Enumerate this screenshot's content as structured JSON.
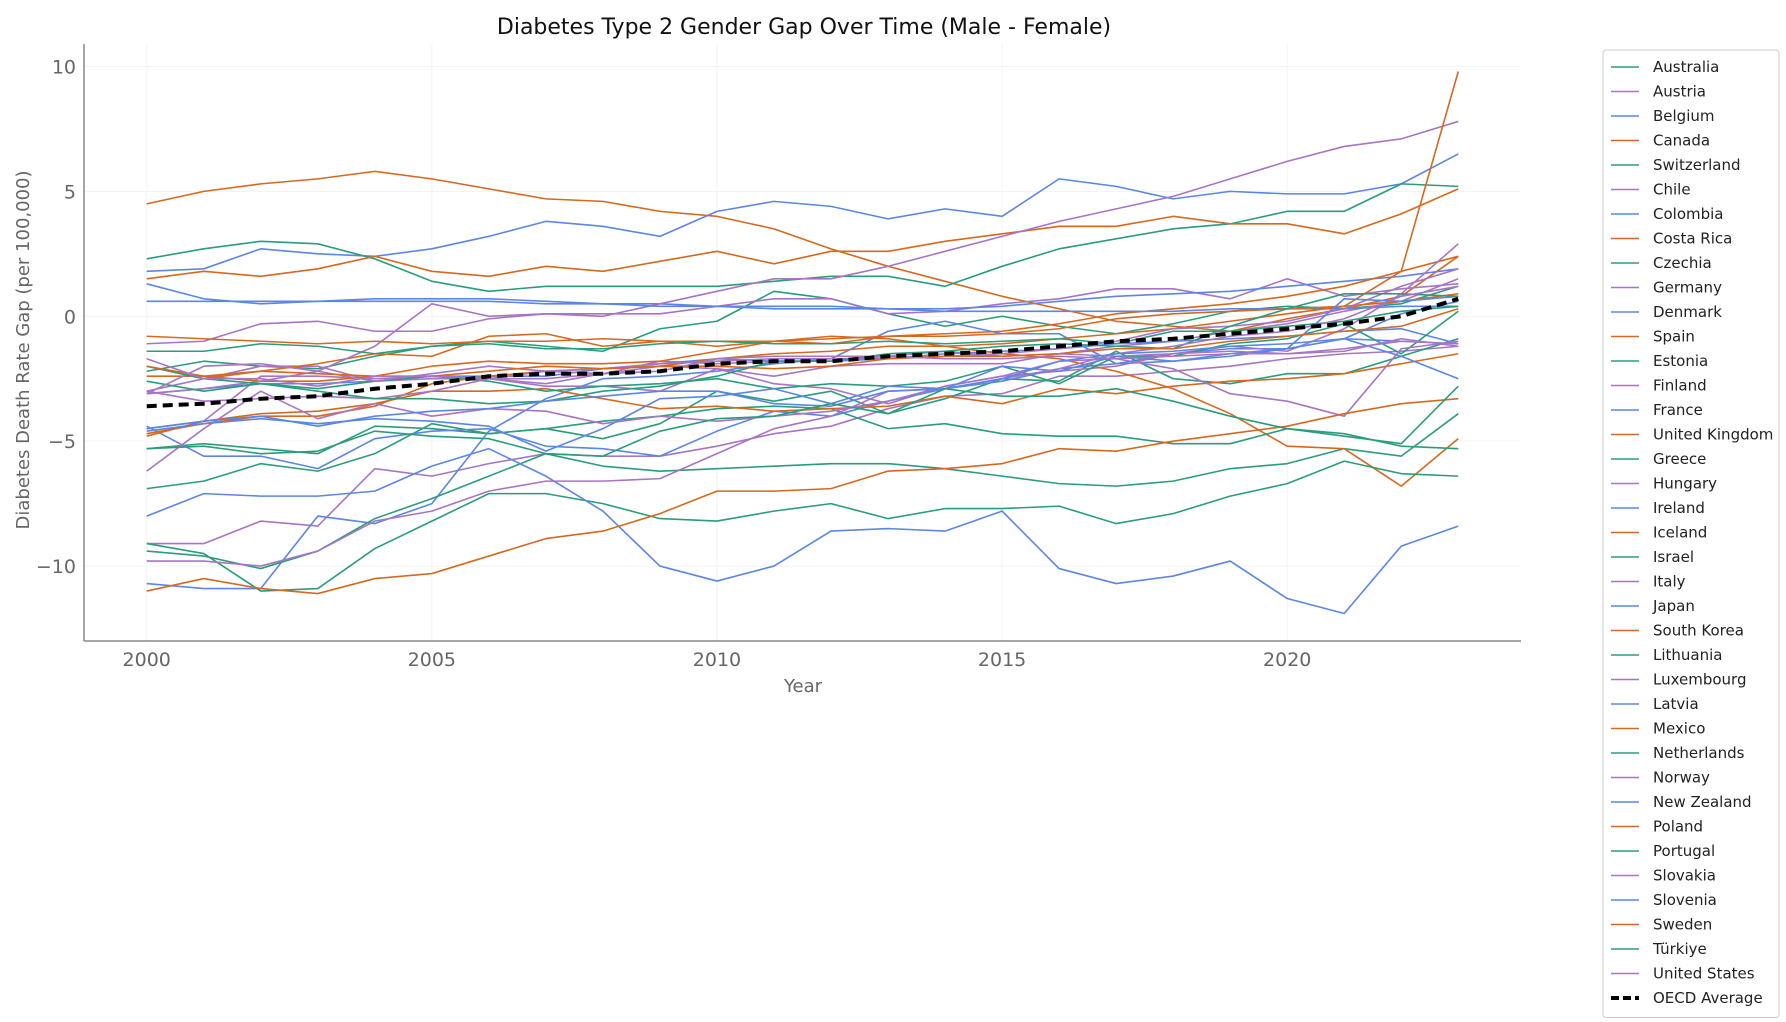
{
  "chart_data": {
    "type": "line",
    "title": "Diabetes Type 2 Gender Gap Over Time (Male - Female)",
    "xlabel": "Year",
    "ylabel": "Diabetes Death Rate Gap (per 100,000)",
    "xlim": [
      1998.9,
      2024.1
    ],
    "ylim": [
      -13,
      10.9
    ],
    "xticks": [
      2000,
      2005,
      2010,
      2015,
      2020
    ],
    "yticks": [
      -10,
      -5,
      0,
      5,
      10
    ],
    "ytick_labels": [
      "−10",
      "−5",
      "0",
      "5",
      "10"
    ],
    "grid": true,
    "legend_position": "right, outside",
    "x": [
      2000,
      2001,
      2002,
      2003,
      2004,
      2005,
      2006,
      2007,
      2008,
      2009,
      2010,
      2011,
      2012,
      2013,
      2014,
      2015,
      2016,
      2017,
      2018,
      2019,
      2020,
      2021,
      2022,
      2023
    ],
    "colors": {
      "green": "#2a9d7c",
      "purple": "#a775c5",
      "blue": "#5b86e5",
      "orange": "#d6691f",
      "average": "#000000"
    },
    "series": [
      {
        "name": "Australia",
        "color": "#2a9d7c",
        "values": [
          -2.2,
          -1.8,
          -2.0,
          -2.1,
          -1.6,
          -1.2,
          -1.0,
          -1.2,
          -1.4,
          -0.5,
          -0.2,
          1.0,
          0.7,
          0.1,
          -0.4,
          0.0,
          -0.4,
          -0.7,
          -0.3,
          0.2,
          0.4,
          0.3,
          0.5,
          1.2
        ]
      },
      {
        "name": "Austria",
        "color": "#a775c5",
        "values": [
          -3.0,
          -2.5,
          -2.0,
          -2.0,
          -2.6,
          -2.5,
          -2.5,
          -2.7,
          -2.3,
          -1.8,
          -1.9,
          -1.8,
          -1.8,
          -1.6,
          -1.4,
          -1.6,
          -1.5,
          -1.2,
          -1.0,
          -0.6,
          -0.3,
          0.2,
          0.6,
          1.5
        ]
      },
      {
        "name": "Belgium",
        "color": "#5b86e5",
        "values": [
          1.8,
          1.9,
          2.7,
          2.5,
          2.4,
          2.7,
          3.2,
          3.8,
          3.6,
          3.2,
          4.2,
          4.6,
          4.4,
          3.9,
          4.3,
          4.0,
          5.5,
          5.2,
          4.7,
          5.0,
          4.9,
          4.9,
          5.3,
          6.5
        ]
      },
      {
        "name": "Canada",
        "color": "#d6691f",
        "values": [
          4.5,
          5.0,
          5.3,
          5.5,
          5.8,
          5.5,
          5.1,
          4.7,
          4.6,
          4.2,
          4.0,
          3.5,
          2.7,
          2.0,
          1.4,
          0.8,
          0.3,
          -0.2,
          -0.4,
          -0.6,
          -0.1,
          0.3,
          0.8,
          2.4
        ]
      },
      {
        "name": "Switzerland",
        "color": "#2a9d7c",
        "values": [
          2.3,
          2.7,
          3.0,
          2.9,
          2.3,
          1.4,
          1.0,
          1.2,
          1.2,
          1.2,
          1.2,
          1.4,
          1.6,
          1.6,
          1.2,
          2.0,
          2.7,
          3.1,
          3.5,
          3.7,
          4.2,
          4.2,
          5.3,
          5.2
        ]
      },
      {
        "name": "Chile",
        "color": "#a775c5",
        "values": [
          -9.1,
          -9.1,
          -8.2,
          -8.4,
          -6.1,
          -6.4,
          -5.9,
          -5.5,
          -5.6,
          -5.6,
          -5.2,
          -4.7,
          -4.4,
          -3.7,
          -3.2,
          -3.1,
          -2.4,
          -2.4,
          -2.2,
          -2.0,
          -1.7,
          -1.5,
          -1.4,
          -1.2
        ]
      },
      {
        "name": "Colombia",
        "color": "#5b86e5",
        "values": [
          -10.7,
          -10.9,
          -10.9,
          -8.0,
          -8.3,
          -7.5,
          -4.6,
          -3.3,
          -2.5,
          -2.4,
          -2.2,
          -1.9,
          -1.7,
          -0.6,
          -0.2,
          -0.7,
          -0.7,
          -1.9,
          -1.5,
          -1.3,
          -1.3,
          -0.9,
          0.1,
          0.6
        ]
      },
      {
        "name": "Costa Rica",
        "color": "#d6691f",
        "values": [
          1.5,
          1.8,
          1.6,
          1.9,
          2.4,
          1.8,
          1.6,
          2.0,
          1.8,
          2.2,
          2.6,
          2.1,
          2.6,
          2.6,
          3.0,
          3.3,
          3.6,
          3.6,
          4.0,
          3.7,
          3.7,
          3.3,
          4.1,
          5.1
        ]
      },
      {
        "name": "Czechia",
        "color": "#2a9d7c",
        "values": [
          -5.3,
          -5.1,
          -5.3,
          -5.5,
          -4.4,
          -4.5,
          -4.7,
          -4.5,
          -4.9,
          -4.3,
          -3.0,
          -3.4,
          -3.0,
          -3.9,
          -3.3,
          -2.5,
          -2.6,
          -1.4,
          -2.5,
          -2.7,
          -2.3,
          -2.3,
          -1.6,
          -0.9
        ]
      },
      {
        "name": "Germany",
        "color": "#a775c5",
        "values": [
          -1.1,
          -1.0,
          -0.3,
          -0.2,
          -0.6,
          -0.6,
          -0.1,
          0.1,
          0.1,
          0.1,
          0.4,
          0.7,
          0.7,
          0.1,
          0.2,
          0.5,
          0.7,
          1.1,
          1.1,
          0.7,
          1.5,
          0.8,
          1.1,
          1.3
        ]
      },
      {
        "name": "Denmark",
        "color": "#5b86e5",
        "values": [
          1.3,
          0.7,
          0.5,
          0.6,
          0.7,
          0.7,
          0.7,
          0.6,
          0.5,
          0.5,
          0.4,
          0.4,
          0.4,
          0.3,
          0.3,
          0.4,
          0.6,
          0.8,
          0.9,
          1.0,
          1.2,
          1.4,
          1.6,
          1.9
        ]
      },
      {
        "name": "Spain",
        "color": "#d6691f",
        "values": [
          -2.0,
          -2.5,
          -2.2,
          -1.9,
          -1.5,
          -1.6,
          -0.8,
          -0.7,
          -1.2,
          -1.0,
          -1.2,
          -1.0,
          -1.1,
          -0.8,
          -0.7,
          -0.6,
          -0.3,
          0.1,
          0.3,
          0.5,
          0.8,
          1.2,
          1.8,
          2.4
        ]
      },
      {
        "name": "Estonia",
        "color": "#2a9d7c",
        "values": [
          -9.4,
          -9.6,
          -10.1,
          -9.4,
          -8.1,
          -7.3,
          -6.4,
          -5.5,
          -6.0,
          -6.2,
          -6.1,
          -6.0,
          -5.9,
          -5.9,
          -6.1,
          -6.4,
          -6.7,
          -6.8,
          -6.6,
          -6.1,
          -5.9,
          -5.3,
          -5.6,
          -3.9
        ]
      },
      {
        "name": "Finland",
        "color": "#a775c5",
        "values": [
          -4.5,
          -4.2,
          -2.4,
          -2.4,
          -2.5,
          -2.4,
          -2.5,
          -2.8,
          -2.8,
          -3.0,
          -2.1,
          -2.7,
          -2.9,
          -3.5,
          -2.8,
          -2.4,
          -2.2,
          -2.0,
          -1.5,
          -1.2,
          -1.4,
          -0.5,
          0.9,
          2.9
        ]
      },
      {
        "name": "France",
        "color": "#5b86e5",
        "values": [
          -3.1,
          -2.9,
          -2.7,
          -2.7,
          -2.6,
          -2.4,
          -2.4,
          -2.4,
          -2.1,
          -1.9,
          -1.7,
          -1.8,
          -1.8,
          -1.7,
          -1.5,
          -1.4,
          -1.3,
          -1.1,
          -1.0,
          -0.9,
          -0.8,
          -0.6,
          -0.5,
          -1.1
        ]
      },
      {
        "name": "United Kingdom",
        "color": "#d6691f",
        "values": [
          -2.4,
          -2.4,
          -2.6,
          -2.6,
          -2.4,
          -2.0,
          -1.8,
          -1.9,
          -1.9,
          -1.8,
          -1.4,
          -1.0,
          -0.8,
          -0.9,
          -1.2,
          -1.5,
          -1.7,
          -2.2,
          -2.9,
          -3.9,
          -5.2,
          -5.3,
          -6.8,
          -4.9
        ]
      },
      {
        "name": "Greece",
        "color": "#2a9d7c",
        "values": [
          -6.9,
          -6.6,
          -5.9,
          -6.2,
          -5.5,
          -4.3,
          -4.7,
          -4.5,
          -4.2,
          -4.0,
          -3.7,
          -3.6,
          -3.7,
          -4.5,
          -4.3,
          -4.7,
          -4.8,
          -4.8,
          -5.1,
          -5.1,
          -4.5,
          -4.7,
          -5.2,
          -5.3
        ]
      },
      {
        "name": "Hungary",
        "color": "#a775c5",
        "values": [
          -3.1,
          -2.9,
          -2.6,
          -2.2,
          -1.2,
          0.5,
          0.0,
          0.1,
          0.0,
          0.5,
          1.0,
          1.5,
          1.5,
          2.0,
          2.6,
          3.2,
          3.8,
          4.3,
          4.8,
          5.5,
          6.2,
          6.8,
          7.1,
          7.8
        ]
      },
      {
        "name": "Ireland",
        "color": "#5b86e5",
        "values": [
          -4.4,
          -5.6,
          -5.6,
          -6.1,
          -4.9,
          -4.6,
          -4.5,
          -5.2,
          -5.3,
          -5.6,
          -4.6,
          -3.8,
          -4.0,
          -3.4,
          -2.9,
          -2.6,
          -2.1,
          -1.9,
          -1.8,
          -1.5,
          -1.3,
          -0.9,
          -1.0,
          -1.1
        ]
      },
      {
        "name": "Iceland",
        "color": "#d6691f",
        "values": [
          -4.8,
          -4.2,
          -3.9,
          -3.8,
          -3.5,
          -3.0,
          -3.0,
          -2.9,
          -3.3,
          -3.7,
          -3.6,
          -3.8,
          -3.7,
          -3.6,
          -3.2,
          -3.5,
          -2.9,
          -3.1,
          -2.8,
          -2.6,
          -2.5,
          -2.3,
          -1.9,
          -1.5
        ]
      },
      {
        "name": "Israel",
        "color": "#2a9d7c",
        "values": [
          -2.6,
          -3.0,
          -2.7,
          -2.9,
          -2.6,
          -2.4,
          -2.6,
          -3.0,
          -2.8,
          -2.7,
          -2.5,
          -2.9,
          -2.7,
          -2.8,
          -2.6,
          -2.0,
          -2.7,
          -1.6,
          -1.6,
          -1.1,
          -0.9,
          -0.3,
          -1.5,
          0.2
        ]
      },
      {
        "name": "Italy",
        "color": "#a775c5",
        "values": [
          -3.1,
          -2.0,
          -1.9,
          -2.2,
          -2.6,
          -2.3,
          -2.0,
          -2.2,
          -2.3,
          -2.0,
          -2.1,
          -2.4,
          -2.0,
          -1.9,
          -1.9,
          -1.9,
          -1.5,
          -1.6,
          -1.5,
          -1.4,
          -1.5,
          -1.3,
          -1.0,
          -1.1
        ]
      },
      {
        "name": "Japan",
        "color": "#5b86e5",
        "values": [
          0.6,
          0.6,
          0.6,
          0.6,
          0.6,
          0.6,
          0.6,
          0.5,
          0.5,
          0.4,
          0.4,
          0.3,
          0.3,
          0.3,
          0.2,
          0.2,
          0.2,
          0.2,
          0.2,
          0.3,
          0.3,
          0.3,
          0.4,
          0.4
        ]
      },
      {
        "name": "South Korea",
        "color": "#d6691f",
        "values": [
          -4.7,
          -4.3,
          -4.0,
          -4.0,
          -3.6,
          -2.7,
          -2.4,
          -2.2,
          -2.1,
          -2.0,
          -1.7,
          -1.5,
          -1.4,
          -1.2,
          -1.2,
          -1.1,
          -0.9,
          -0.7,
          -0.5,
          -0.2,
          0.1,
          0.4,
          0.6,
          0.9
        ]
      },
      {
        "name": "Lithuania",
        "color": "#2a9d7c",
        "values": [
          -9.1,
          -9.5,
          -11.0,
          -10.9,
          -9.3,
          -8.2,
          -7.1,
          -7.1,
          -7.5,
          -8.1,
          -8.2,
          -7.8,
          -7.5,
          -8.1,
          -7.7,
          -7.7,
          -7.6,
          -8.3,
          -7.9,
          -7.2,
          -6.7,
          -5.8,
          -6.3,
          -6.4
        ]
      },
      {
        "name": "Luxembourg",
        "color": "#a775c5",
        "values": [
          -6.2,
          -4.5,
          -3.0,
          -4.1,
          -3.5,
          -4.0,
          -3.7,
          -3.8,
          -4.3,
          -4.0,
          -4.2,
          -4.0,
          -3.8,
          -3.4,
          -2.8,
          -2.4,
          -1.8,
          -1.7,
          -2.1,
          -3.1,
          -3.4,
          -4.0,
          -1.3,
          -1.0
        ]
      },
      {
        "name": "Latvia",
        "color": "#5b86e5",
        "values": [
          -8.0,
          -7.1,
          -7.2,
          -7.2,
          -7.0,
          -6.0,
          -5.3,
          -6.4,
          -7.8,
          -10.0,
          -10.6,
          -10.0,
          -8.6,
          -8.5,
          -8.6,
          -7.8,
          -10.1,
          -10.7,
          -10.4,
          -9.8,
          -11.3,
          -11.9,
          -9.2,
          -8.4
        ]
      },
      {
        "name": "Mexico",
        "color": "#d6691f",
        "values": [
          -0.8,
          -0.9,
          -1.0,
          -1.1,
          -1.0,
          -1.1,
          -1.0,
          -1.0,
          -0.9,
          -1.0,
          -1.0,
          -1.0,
          -0.9,
          -0.8,
          -0.8,
          -0.7,
          -0.5,
          -0.1,
          0.1,
          0.2,
          0.3,
          0.4,
          1.8,
          9.8
        ]
      },
      {
        "name": "Netherlands",
        "color": "#2a9d7c",
        "values": [
          -1.4,
          -1.4,
          -1.1,
          -1.2,
          -1.5,
          -1.2,
          -1.1,
          -1.3,
          -1.3,
          -1.1,
          -1.0,
          -1.1,
          -1.1,
          -1.0,
          -1.1,
          -1.0,
          -0.9,
          -1.1,
          -0.6,
          -0.6,
          -0.4,
          -0.2,
          0.2,
          0.4
        ]
      },
      {
        "name": "Norway",
        "color": "#a775c5",
        "values": [
          -3.0,
          -3.4,
          -3.3,
          -3.2,
          -3.3,
          -3.0,
          -2.5,
          -2.2,
          -2.1,
          -1.9,
          -1.8,
          -1.7,
          -1.7,
          -1.7,
          -1.6,
          -1.5,
          -1.3,
          -1.0,
          -0.5,
          -0.4,
          -0.2,
          0.3,
          1.2,
          1.9
        ]
      },
      {
        "name": "New Zealand",
        "color": "#5b86e5",
        "values": [
          -4.6,
          -4.3,
          -4.1,
          -4.3,
          -4.1,
          -4.2,
          -4.4,
          -5.4,
          -4.5,
          -3.3,
          -3.2,
          -2.9,
          -3.5,
          -2.8,
          -2.9,
          -2.0,
          -2.2,
          -1.6,
          -1.8,
          -1.6,
          -1.3,
          0.7,
          0.6,
          0.8
        ]
      },
      {
        "name": "Poland",
        "color": "#d6691f",
        "values": [
          -11.0,
          -10.5,
          -10.9,
          -11.1,
          -10.5,
          -10.3,
          -9.6,
          -8.9,
          -8.6,
          -7.9,
          -7.0,
          -7.0,
          -6.9,
          -6.2,
          -6.1,
          -5.9,
          -5.3,
          -5.4,
          -5.0,
          -4.7,
          -4.4,
          -3.9,
          -3.5,
          -3.3
        ]
      },
      {
        "name": "Portugal",
        "color": "#2a9d7c",
        "values": [
          -2.0,
          -2.5,
          -2.7,
          -3.0,
          -3.3,
          -3.3,
          -3.5,
          -3.4,
          -3.0,
          -2.8,
          -2.4,
          -1.8,
          -1.8,
          -1.5,
          -1.4,
          -1.2,
          -1.1,
          -1.2,
          -1.3,
          -0.4,
          0.3,
          0.9,
          0.9,
          0.8
        ]
      },
      {
        "name": "Slovakia",
        "color": "#a775c5",
        "values": [
          -9.8,
          -9.8,
          -10.0,
          -9.4,
          -8.2,
          -7.8,
          -7.0,
          -6.6,
          -6.6,
          -6.5,
          -5.5,
          -4.5,
          -4.0,
          -3.0,
          -2.9,
          -2.5,
          -2.1,
          -1.5,
          -1.2,
          -0.8,
          -0.6,
          -0.1,
          0.8,
          1.2
        ]
      },
      {
        "name": "Slovenia",
        "color": "#5b86e5",
        "values": [
          -4.5,
          -4.2,
          -4.0,
          -4.4,
          -4.0,
          -3.8,
          -3.7,
          -3.4,
          -3.2,
          -3.0,
          -3.0,
          -3.5,
          -3.6,
          -3.0,
          -2.9,
          -2.5,
          -1.8,
          -1.5,
          -1.4,
          -1.2,
          -1.1,
          -0.9,
          -1.6,
          -2.5
        ]
      },
      {
        "name": "Sweden",
        "color": "#d6691f",
        "values": [
          -2.0,
          -2.4,
          -2.2,
          -2.3,
          -2.4,
          -2.4,
          -2.2,
          -2.0,
          -2.1,
          -2.0,
          -2.0,
          -2.1,
          -2.0,
          -1.7,
          -1.6,
          -1.6,
          -1.5,
          -1.3,
          -1.3,
          -1.0,
          -0.8,
          -0.6,
          -0.4,
          0.3
        ]
      },
      {
        "name": "Türkiye",
        "color": "#2a9d7c",
        "values": [
          -5.3,
          -5.2,
          -5.5,
          -5.4,
          -4.6,
          -4.8,
          -4.9,
          -5.5,
          -5.6,
          -4.6,
          -4.1,
          -4.0,
          -3.5,
          -3.9,
          -2.9,
          -3.2,
          -3.2,
          -2.9,
          -3.4,
          -4.0,
          -4.5,
          -4.8,
          -5.1,
          -2.8
        ]
      },
      {
        "name": "United States",
        "color": "#a775c5",
        "values": [
          -1.7,
          -2.5,
          -2.5,
          -2.8,
          -2.4,
          -2.4,
          -2.5,
          -2.5,
          -2.3,
          -2.2,
          -1.7,
          -1.6,
          -1.6,
          -1.6,
          -1.7,
          -1.7,
          -1.6,
          -1.7,
          -1.6,
          -1.5,
          -1.5,
          -1.4,
          -0.9,
          -1.2
        ]
      },
      {
        "name": "OECD Average",
        "color": "#000000",
        "dashed": true,
        "values": [
          -3.6,
          -3.5,
          -3.3,
          -3.2,
          -2.9,
          -2.7,
          -2.4,
          -2.3,
          -2.3,
          -2.2,
          -1.9,
          -1.8,
          -1.8,
          -1.6,
          -1.5,
          -1.4,
          -1.2,
          -1.0,
          -0.9,
          -0.7,
          -0.5,
          -0.3,
          0.0,
          0.7
        ]
      }
    ]
  }
}
